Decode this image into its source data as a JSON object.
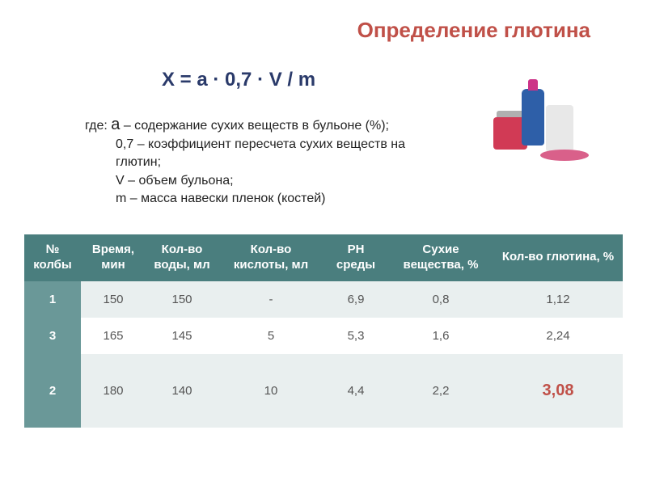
{
  "title": {
    "text": "Определение глютина",
    "color": "#c05048"
  },
  "formula": {
    "text": "X = a · 0,7 · V / m",
    "color": "#2a3a6a"
  },
  "definitions": {
    "lines": [
      "где: а – содержание сухих веществ в бульоне (%);",
      "0,7 – коэффициент пересчета сухих веществ на глютин;",
      "V – объем бульона;",
      "m – масса навески пленок (костей)"
    ],
    "color": "#222222"
  },
  "table": {
    "header_bg": "#4a7e7e",
    "rownum_bg": "#6a9898",
    "alt_row_bg": "#e9efef",
    "row_bg": "#ffffff",
    "result_color": "#c05048",
    "columns": [
      "№ колбы",
      "Время, мин",
      "Кол-во воды, мл",
      "Кол-во кислоты, мл",
      "PH среды",
      "Сухие вещества, %",
      "Кол-во глютина, %"
    ],
    "col_widths": [
      "70px",
      "80px",
      "90px",
      "130px",
      "80px",
      "130px",
      "160px"
    ],
    "rows": [
      {
        "num": "1",
        "cells": [
          "150",
          "150",
          "-",
          "6,9",
          "0,8",
          "1,12"
        ],
        "tall": false
      },
      {
        "num": "3",
        "cells": [
          "165",
          "145",
          "5",
          "5,3",
          "1,6",
          "2,24"
        ],
        "tall": false
      },
      {
        "num": "2",
        "cells": [
          "180",
          "140",
          "10",
          "4,4",
          "2,2",
          "3,08"
        ],
        "tall": true,
        "highlight_last": true
      }
    ]
  }
}
